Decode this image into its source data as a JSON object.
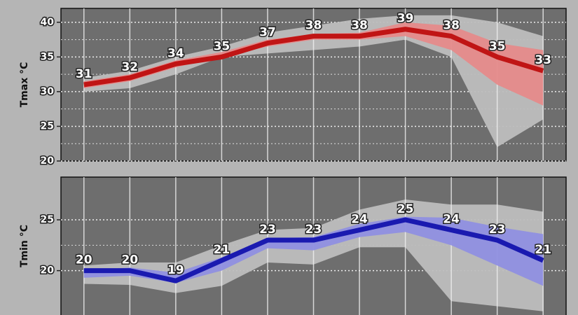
{
  "chart_data": [
    {
      "type": "line",
      "y_label": "Tmax °C",
      "categories": [
        null,
        null,
        null,
        null,
        null,
        null,
        null,
        null,
        null,
        null,
        null
      ],
      "ylim": [
        20,
        42
      ],
      "yticks": [
        20,
        25,
        30,
        35,
        40
      ],
      "grid": true,
      "values": [
        31,
        32,
        34,
        35,
        37,
        38,
        38,
        39,
        38,
        35,
        33
      ],
      "color": "#c01515",
      "band": {
        "lower": [
          30.5,
          31.5,
          33.5,
          35,
          36.5,
          37.5,
          37.5,
          38,
          36,
          31,
          28
        ],
        "upper": [
          31.5,
          32.5,
          34.5,
          35.7,
          37.5,
          38.3,
          38.5,
          40,
          39.5,
          37,
          36
        ],
        "color": "#e58a8a"
      },
      "spread": {
        "lower": [
          30,
          30.5,
          32.5,
          35,
          35.5,
          36,
          36.5,
          37.5,
          35,
          22,
          26
        ],
        "upper": [
          32,
          33,
          35,
          36.5,
          38.5,
          39.5,
          40.5,
          41,
          41,
          40,
          38
        ],
        "color": "#bdbdbd"
      }
    },
    {
      "type": "line",
      "y_label": "Tmin °C",
      "categories": [
        null,
        null,
        null,
        null,
        null,
        null,
        null,
        null,
        null,
        null,
        null
      ],
      "ylim": [
        15.5,
        29.2
      ],
      "yticks": [
        20,
        25
      ],
      "grid": true,
      "values": [
        20,
        20,
        19,
        21,
        23,
        23,
        24,
        25,
        24,
        23,
        21
      ],
      "color": "#1a1ab0",
      "band": {
        "lower": [
          19.3,
          19.5,
          18.8,
          20,
          22.2,
          22,
          23.3,
          23.8,
          22.5,
          20.5,
          18.5
        ],
        "upper": [
          20,
          20.3,
          19.8,
          21.3,
          23.2,
          23.3,
          24.6,
          25.3,
          25.2,
          24.3,
          23.6
        ],
        "color": "#8f8fe0"
      },
      "spread": {
        "lower": [
          18.7,
          18.6,
          17.8,
          18.5,
          20.8,
          20.6,
          22.3,
          22.3,
          17,
          16.5,
          16
        ],
        "upper": [
          20.5,
          20.8,
          20.8,
          22.5,
          24,
          24.2,
          26,
          27,
          26.5,
          26.5,
          25.8
        ],
        "color": "#bdbdbd"
      }
    }
  ]
}
